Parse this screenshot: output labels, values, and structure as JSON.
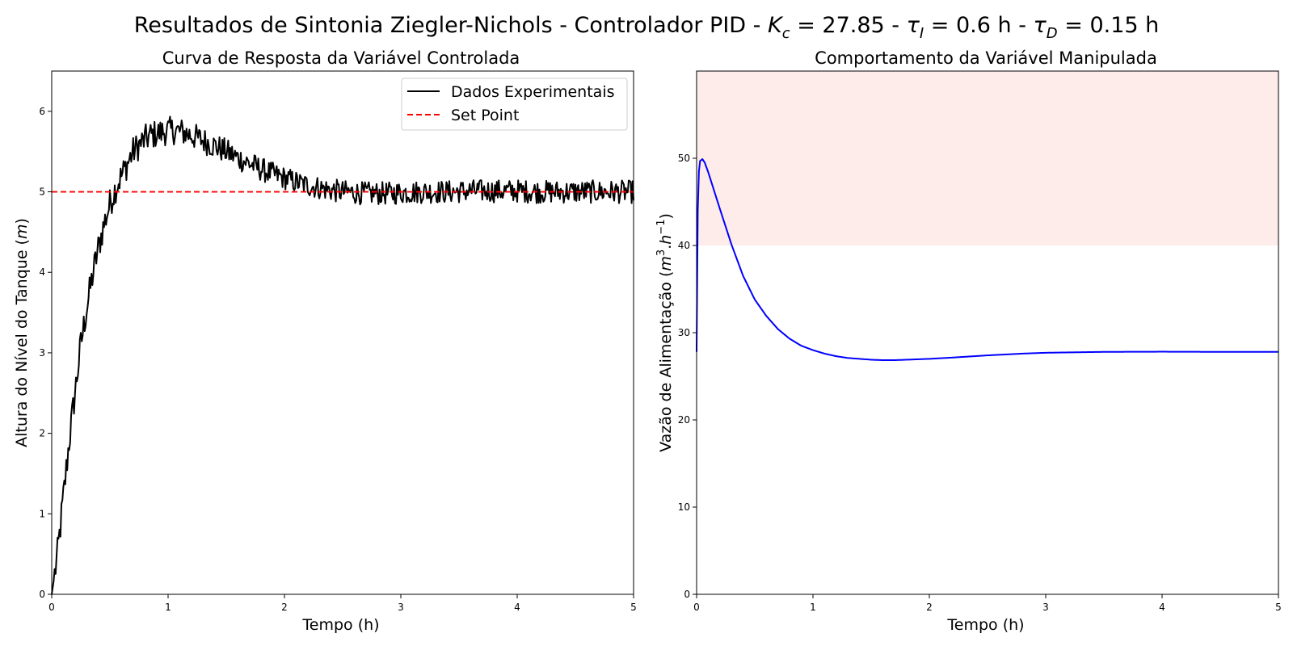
{
  "figure": {
    "suptitle": {
      "prefix": "Resultados de Sintonia Ziegler-Nichols - Controlador PID - ",
      "kc_symbol": "K",
      "kc_sub": "c",
      "kc_value": " = 27.85 - ",
      "taui_symbol": "τ",
      "taui_sub": "I",
      "taui_value": " = 0.6 h - ",
      "taud_symbol": "τ",
      "taud_sub": "D",
      "taud_value": " = 0.15 h"
    }
  },
  "left_labels": {
    "title": "Curva de Resposta da Variável Controlada",
    "xlabel": "Tempo (h)",
    "ylabel_text": "Altura do Nível do Tanque (",
    "ylabel_unit": "m",
    "ylabel_close": ")"
  },
  "right_labels": {
    "title": "Comportamento da Variável Manipulada",
    "xlabel": "Tempo (h)",
    "ylabel_text": "Vazão de Alimentação (",
    "ylabel_m": "m",
    "ylabel_exp3": "3",
    "ylabel_dot": ".",
    "ylabel_h": "h",
    "ylabel_expm1": "−1",
    "ylabel_close": ")"
  },
  "chart_data": [
    {
      "type": "line",
      "title": "Curva de Resposta da Variável Controlada",
      "xlabel": "Tempo (h)",
      "ylabel": "Altura do Nível do Tanque (m)",
      "xlim": [
        0,
        5
      ],
      "ylim": [
        0,
        6.5
      ],
      "xticks": [
        0,
        1,
        2,
        3,
        4,
        5
      ],
      "yticks": [
        0,
        1,
        2,
        3,
        4,
        5,
        6
      ],
      "grid": false,
      "legend": {
        "placement": "top-right",
        "entries": [
          "Dados Experimentais",
          "Set Point"
        ]
      },
      "series": [
        {
          "name": "Dados Experimentais",
          "color": "#000000",
          "style": "solid",
          "x": [
            0,
            0.05,
            0.1,
            0.15,
            0.2,
            0.25,
            0.3,
            0.35,
            0.4,
            0.45,
            0.5,
            0.55,
            0.6,
            0.65,
            0.7,
            0.75,
            0.8,
            0.85,
            0.9,
            0.95,
            1.0,
            1.05,
            1.1,
            1.15,
            1.2,
            1.3,
            1.4,
            1.5,
            1.6,
            1.7,
            1.8,
            1.9,
            2.0,
            2.1,
            2.2,
            2.3,
            2.4,
            2.5,
            2.6,
            2.7,
            2.8,
            2.9,
            3.0,
            3.2,
            3.4,
            3.6,
            3.8,
            4.0,
            4.2,
            4.4,
            4.6,
            4.8,
            5.0
          ],
          "y": [
            0.0,
            0.5,
            1.2,
            1.9,
            2.5,
            3.1,
            3.55,
            3.95,
            4.3,
            4.6,
            4.85,
            5.05,
            5.2,
            5.35,
            5.5,
            5.58,
            5.65,
            5.7,
            5.72,
            5.74,
            5.76,
            5.76,
            5.75,
            5.73,
            5.7,
            5.64,
            5.57,
            5.5,
            5.42,
            5.35,
            5.28,
            5.22,
            5.17,
            5.12,
            5.08,
            5.05,
            5.02,
            5.0,
            4.99,
            4.98,
            4.98,
            4.98,
            4.99,
            5.0,
            5.0,
            5.01,
            5.01,
            5.01,
            5.0,
            5.0,
            5.0,
            5.0,
            5.0
          ],
          "noise_amplitude": 0.1
        },
        {
          "name": "Set Point",
          "color": "#ff0000",
          "style": "dashed",
          "x": [
            0,
            5
          ],
          "y": [
            5,
            5
          ]
        }
      ]
    },
    {
      "type": "line",
      "title": "Comportamento da Variável Manipulada",
      "xlabel": "Tempo (h)",
      "ylabel": "Vazão de Alimentação (m³.h⁻¹)",
      "xlim": [
        0,
        5
      ],
      "ylim": [
        0,
        60
      ],
      "xticks": [
        0,
        1,
        2,
        3,
        4,
        5
      ],
      "yticks": [
        0,
        10,
        20,
        30,
        40,
        50
      ],
      "grid": false,
      "shaded_region": {
        "y_from": 40,
        "y_to": 60,
        "color": "#fdecea"
      },
      "series": [
        {
          "color": "#0000ff",
          "style": "solid",
          "x": [
            0,
            0.01,
            0.02,
            0.03,
            0.05,
            0.07,
            0.1,
            0.15,
            0.2,
            0.3,
            0.4,
            0.5,
            0.6,
            0.7,
            0.8,
            0.9,
            1.0,
            1.1,
            1.2,
            1.3,
            1.4,
            1.5,
            1.6,
            1.7,
            1.8,
            2.0,
            2.2,
            2.5,
            2.8,
            3.0,
            3.5,
            4.0,
            4.5,
            5.0
          ],
          "y": [
            27.8,
            44.0,
            48.5,
            49.7,
            49.9,
            49.5,
            48.4,
            46.3,
            44.2,
            40.1,
            36.5,
            33.8,
            31.9,
            30.4,
            29.3,
            28.5,
            28.0,
            27.6,
            27.3,
            27.1,
            27.0,
            26.9,
            26.85,
            26.85,
            26.9,
            27.0,
            27.15,
            27.4,
            27.6,
            27.7,
            27.8,
            27.82,
            27.8,
            27.8
          ]
        }
      ]
    }
  ]
}
